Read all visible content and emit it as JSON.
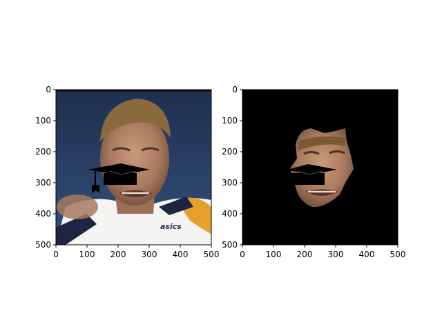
{
  "chart_data": [
    {
      "type": "image",
      "title": "",
      "xlabel": "",
      "ylabel": "",
      "xlim": [
        0,
        500
      ],
      "ylim": [
        500,
        0
      ],
      "xticks": [
        "0",
        "100",
        "200",
        "300",
        "400",
        "500"
      ],
      "yticks": [
        "0",
        "100",
        "200",
        "300",
        "400",
        "500"
      ],
      "content": "portrait photo with graduation cap overlay",
      "background_color": "#2b3f63",
      "overlay_annotations": [
        {
          "kind": "graduation-cap",
          "cx": 200,
          "cy": 270
        }
      ],
      "logo_text": "asics"
    },
    {
      "type": "image",
      "title": "",
      "xlabel": "",
      "ylabel": "",
      "xlim": [
        0,
        500
      ],
      "ylim": [
        500,
        0
      ],
      "xticks": [
        "0",
        "100",
        "200",
        "300",
        "400",
        "500"
      ],
      "yticks": [
        "0",
        "100",
        "200",
        "300",
        "400",
        "500"
      ],
      "content": "segmented face on black background with graduation cap overlay",
      "background_color": "#000000",
      "overlay_annotations": [
        {
          "kind": "graduation-cap",
          "cx": 200,
          "cy": 270
        }
      ]
    }
  ]
}
